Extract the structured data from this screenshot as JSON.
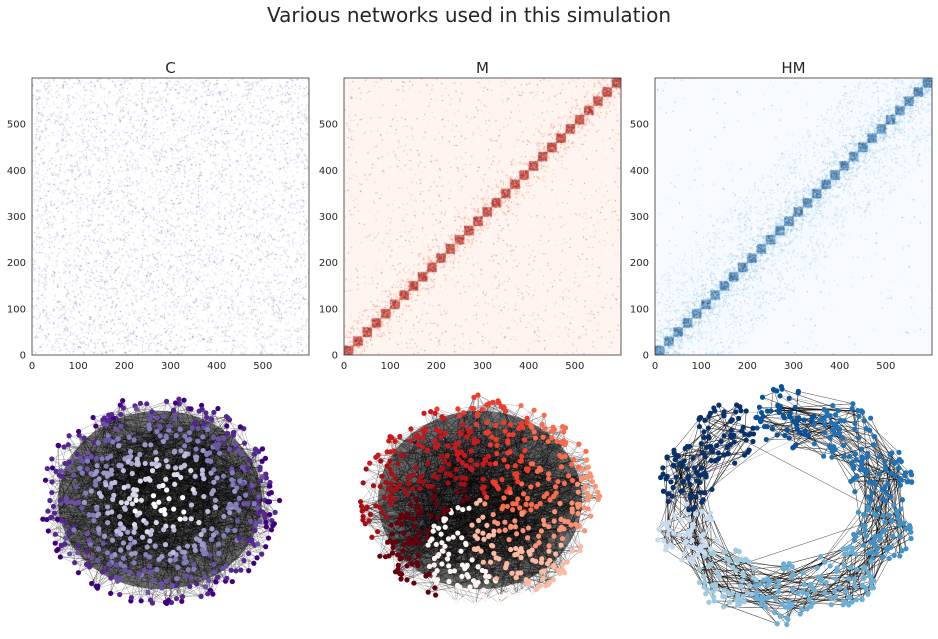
{
  "figure": {
    "title": "Various networks used in this simulation"
  },
  "chart_data": [
    {
      "type": "heatmap",
      "title": "C",
      "description_of_pattern": "uniform random sparse connectivity",
      "n_nodes": 600,
      "xlim": [
        0,
        600
      ],
      "ylim": [
        0,
        600
      ],
      "xticks": [
        0,
        100,
        200,
        300,
        400,
        500
      ],
      "yticks": [
        0,
        100,
        200,
        300,
        400,
        500
      ],
      "colormap": {
        "low": "#ffffff",
        "mid": "#9e9ac8",
        "high": "#3f007d"
      },
      "block_size": 0,
      "density_background": 0.09
    },
    {
      "type": "heatmap",
      "title": "M",
      "n_nodes": 600,
      "xlim": [
        0,
        600
      ],
      "ylim": [
        0,
        600
      ],
      "xticks": [
        0,
        100,
        200,
        300,
        400,
        500
      ],
      "yticks": [
        0,
        100,
        200,
        300,
        400,
        500
      ],
      "colormap": {
        "low": "#fff5f0",
        "mid": "#fb6a4a",
        "high": "#67000d"
      },
      "block_size": 20,
      "density_background": 0.02
    },
    {
      "type": "heatmap",
      "title": "HM",
      "n_nodes": 600,
      "xlim": [
        0,
        600
      ],
      "ylim": [
        0,
        600
      ],
      "xticks": [
        0,
        100,
        200,
        300,
        400,
        500
      ],
      "yticks": [
        0,
        100,
        200,
        300,
        400,
        500
      ],
      "colormap": {
        "low": "#f7fbff",
        "mid": "#6baed6",
        "high": "#08306b"
      },
      "block_size": 20,
      "density_background": 0.004
    }
  ],
  "network_plots": [
    {
      "layout": "dense-blob",
      "node_palette": [
        "#3f007d",
        "#54278f",
        "#6a51a3",
        "#807dba",
        "#9e9ac8",
        "#bcbddc",
        "#dadaeb",
        "#ffffff"
      ],
      "edge_color": "#000000"
    },
    {
      "layout": "dense-blob",
      "node_palette": [
        "#67000d",
        "#a50f15",
        "#cb181d",
        "#ef3b2c",
        "#fb6a4a",
        "#fc9272",
        "#fcbba1",
        "#fff5f0"
      ],
      "edge_color": "#000000"
    },
    {
      "layout": "ring-of-modules",
      "node_palette": [
        "#08306b",
        "#08519c",
        "#2171b5",
        "#4292c6",
        "#6baed6",
        "#9ecae1",
        "#c6dbef",
        "#f7fbff"
      ],
      "edge_color": "#000000"
    }
  ]
}
